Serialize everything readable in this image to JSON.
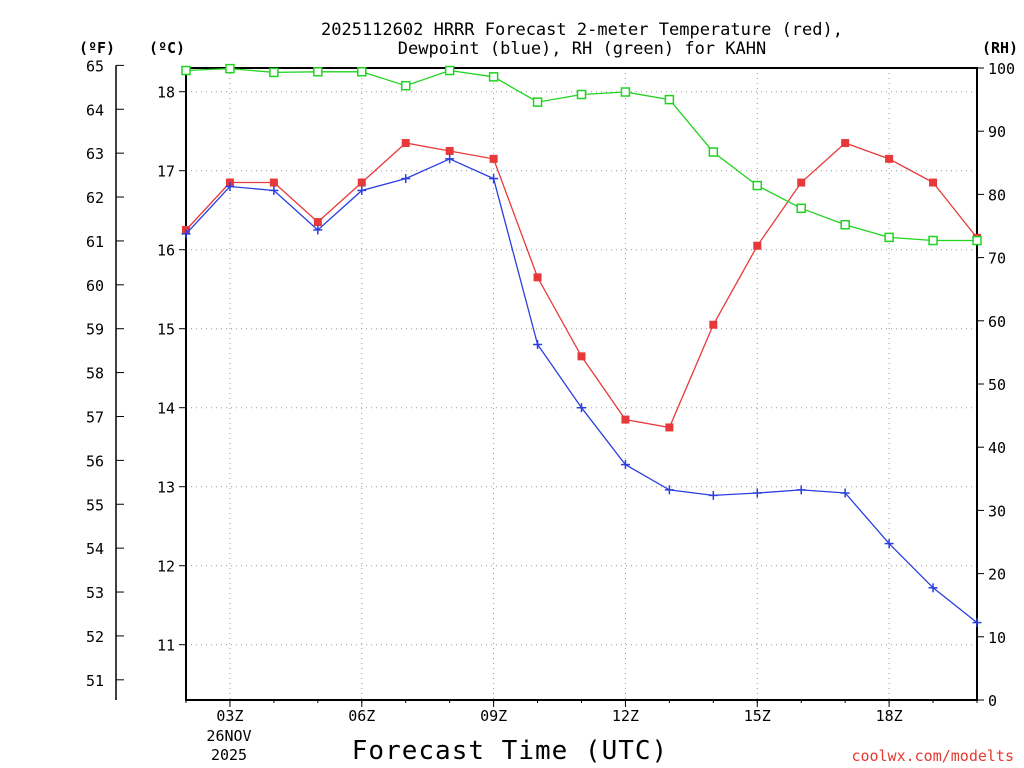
{
  "chart_data": {
    "type": "line",
    "title_line1": "2025112602 HRRR Forecast 2-meter Temperature (red),",
    "title_line2": "Dewpoint (blue), RH (green) for KAHN",
    "xlabel": "Forecast Time (UTC)",
    "credit": "coolwx.com/modelts",
    "date_label_1": "26NOV",
    "date_label_2": "2025",
    "axis_units": {
      "fahrenheit": "(ºF)",
      "celsius": "(ºC)",
      "rh": "(RH)"
    },
    "x": [
      2,
      3,
      4,
      5,
      6,
      7,
      8,
      9,
      10,
      11,
      12,
      13,
      14,
      15,
      16,
      17,
      18,
      19,
      20
    ],
    "xlim": [
      2,
      20
    ],
    "x_ticks": [
      {
        "x": 3,
        "label": "03Z"
      },
      {
        "x": 6,
        "label": "06Z"
      },
      {
        "x": 9,
        "label": "09Z"
      },
      {
        "x": 12,
        "label": "12Z"
      },
      {
        "x": 15,
        "label": "15Z"
      },
      {
        "x": 18,
        "label": "18Z"
      }
    ],
    "celsius_ticks": [
      11,
      12,
      13,
      14,
      15,
      16,
      17,
      18
    ],
    "fahrenheit_ticks": [
      51,
      52,
      53,
      54,
      55,
      56,
      57,
      58,
      59,
      60,
      61,
      62,
      63,
      64,
      65
    ],
    "rh_ticks": [
      0,
      10,
      20,
      30,
      40,
      50,
      60,
      70,
      80,
      90,
      100
    ],
    "ylim_celsius": [
      10.3,
      18.3
    ],
    "ylim_rh": [
      0,
      100
    ],
    "series": [
      {
        "name": "Temperature",
        "unit": "C",
        "color": "#e8393a",
        "marker": "filled-square",
        "values": [
          16.25,
          16.85,
          16.85,
          16.35,
          16.85,
          17.35,
          17.25,
          17.15,
          15.65,
          14.65,
          13.85,
          13.75,
          15.05,
          16.05,
          16.85,
          17.35,
          17.15,
          16.85,
          16.15
        ]
      },
      {
        "name": "Dewpoint",
        "unit": "C",
        "color": "#2a3fe0",
        "marker": "plus",
        "values": [
          16.2,
          16.8,
          16.75,
          16.25,
          16.75,
          16.9,
          17.15,
          16.9,
          14.8,
          14.0,
          13.28,
          12.96,
          12.89,
          12.92,
          12.96,
          12.92,
          12.28,
          11.72,
          11.28
        ]
      },
      {
        "name": "RH",
        "unit": "%",
        "color": "#1fd41f",
        "marker": "open-square",
        "values": [
          99.6,
          99.9,
          99.3,
          99.4,
          99.4,
          97.2,
          99.6,
          98.6,
          94.6,
          95.8,
          96.2,
          95.0,
          86.7,
          81.4,
          77.8,
          75.2,
          73.2,
          72.7,
          72.7
        ]
      }
    ]
  }
}
